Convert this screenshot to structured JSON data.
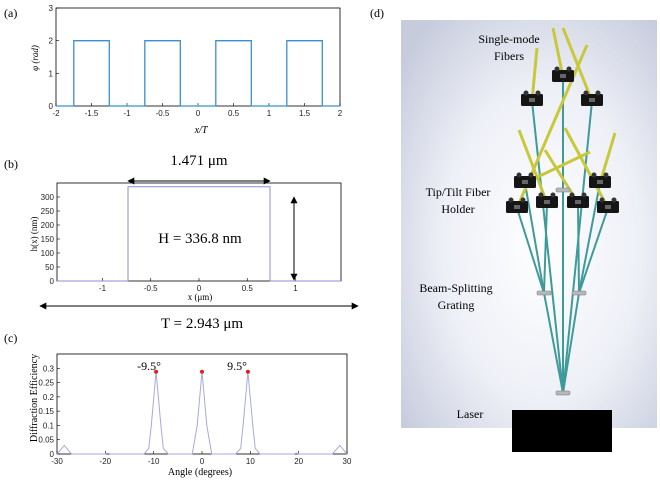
{
  "panel_labels": {
    "a": "(a)",
    "b": "(b)",
    "c": "(c)",
    "d": "(d)"
  },
  "colors": {
    "trace_a": "#3a8fd0",
    "trace_b": "#8c8cd8",
    "trace_c": "#a8a8e0",
    "peak_dot": "#e02020",
    "fiber_yellow": "#c8c83a",
    "fiber_teal": "#3f9a9a",
    "laser": "#000000"
  },
  "diagram_d": {
    "labels": {
      "single_mode_line1": "Single-mode",
      "single_mode_line2": "Fibers",
      "tiptilt_line1": "Tip/Tilt Fiber",
      "tiptilt_line2": "Holder",
      "grating_line1": "Beam-Splitting",
      "grating_line2": "Grating",
      "laser": "Laser"
    },
    "icons": [
      "fiber-holder-icon",
      "grating-icon",
      "laser-block-icon"
    ]
  },
  "chart_data": [
    {
      "id": "a",
      "type": "line",
      "xlabel": "x/T",
      "ylabel": "φ (rad)",
      "xlim": [
        -2,
        2
      ],
      "ylim": [
        0,
        3
      ],
      "xticks": [
        "-2",
        "-1.5",
        "-1",
        "-0.5",
        "0",
        "0.5",
        "1",
        "1.5",
        "2"
      ],
      "yticks": [
        "0",
        "1",
        "2",
        "3"
      ],
      "series": [
        {
          "x": [
            -2,
            -1.75,
            -1.75,
            -1.25,
            -1.25,
            -0.75,
            -0.75,
            -0.25,
            -0.25,
            0.25,
            0.25,
            0.75,
            0.75,
            1.25,
            1.25,
            1.75,
            1.75,
            2
          ],
          "y": [
            0,
            0,
            2,
            2,
            0,
            0,
            2,
            2,
            0,
            0,
            2,
            2,
            0,
            0,
            2,
            2,
            0,
            0
          ]
        }
      ]
    },
    {
      "id": "b",
      "type": "line",
      "xlabel": "x (μm)",
      "ylabel": "h(x) (nm)",
      "xlim": [
        -1.4715,
        1.4715
      ],
      "ylim": [
        0,
        350
      ],
      "xticks": [
        "-1",
        "-0.5",
        "0",
        "0.5",
        "1"
      ],
      "yticks": [
        "0",
        "50",
        "100",
        "150",
        "200",
        "250",
        "300"
      ],
      "annotations": {
        "width": "1.471 μm",
        "height": "H = 336.8 nm",
        "period": "T = 2.943 μm"
      },
      "series": [
        {
          "x": [
            -1.4715,
            -0.7355,
            -0.7355,
            0.7355,
            0.7355,
            1.4715
          ],
          "y": [
            0,
            0,
            336.8,
            336.8,
            0,
            0
          ]
        }
      ]
    },
    {
      "id": "c",
      "type": "line",
      "xlabel": "Angle (degrees)",
      "ylabel": "Diffraction Efficiency",
      "xlim": [
        -30,
        30
      ],
      "ylim": [
        0,
        0.35
      ],
      "xticks": [
        "-30",
        "-20",
        "-10",
        "0",
        "10",
        "20",
        "30"
      ],
      "yticks": [
        "0",
        "0.05",
        "0.1",
        "0.15",
        "0.2",
        "0.25",
        "0.3"
      ],
      "peak_labels": [
        "-9.5°",
        "9.5°"
      ],
      "peaks": [
        {
          "x": -9.5,
          "y": 0.288
        },
        {
          "x": 0,
          "y": 0.288
        },
        {
          "x": 9.5,
          "y": 0.288
        }
      ],
      "series": [
        {
          "x": [
            -30,
            -29,
            -28.5,
            -28,
            -27,
            -20,
            -19.5,
            -19,
            -12,
            -11,
            -10.5,
            -9.5,
            -8.5,
            -8,
            -7,
            -2,
            -1,
            0,
            1,
            2,
            7,
            8,
            8.5,
            9.5,
            10.5,
            11,
            12,
            19,
            19.5,
            20,
            27,
            28,
            28.5,
            29,
            30
          ],
          "y": [
            0,
            0.02,
            0.03,
            0.02,
            0,
            0,
            0.003,
            0,
            0,
            0.02,
            0.1,
            0.288,
            0.1,
            0.02,
            0,
            0,
            0.1,
            0.288,
            0.1,
            0,
            0,
            0.02,
            0.1,
            0.288,
            0.1,
            0.02,
            0,
            0,
            0.003,
            0,
            0,
            0.02,
            0.03,
            0.02,
            0
          ]
        }
      ]
    }
  ]
}
